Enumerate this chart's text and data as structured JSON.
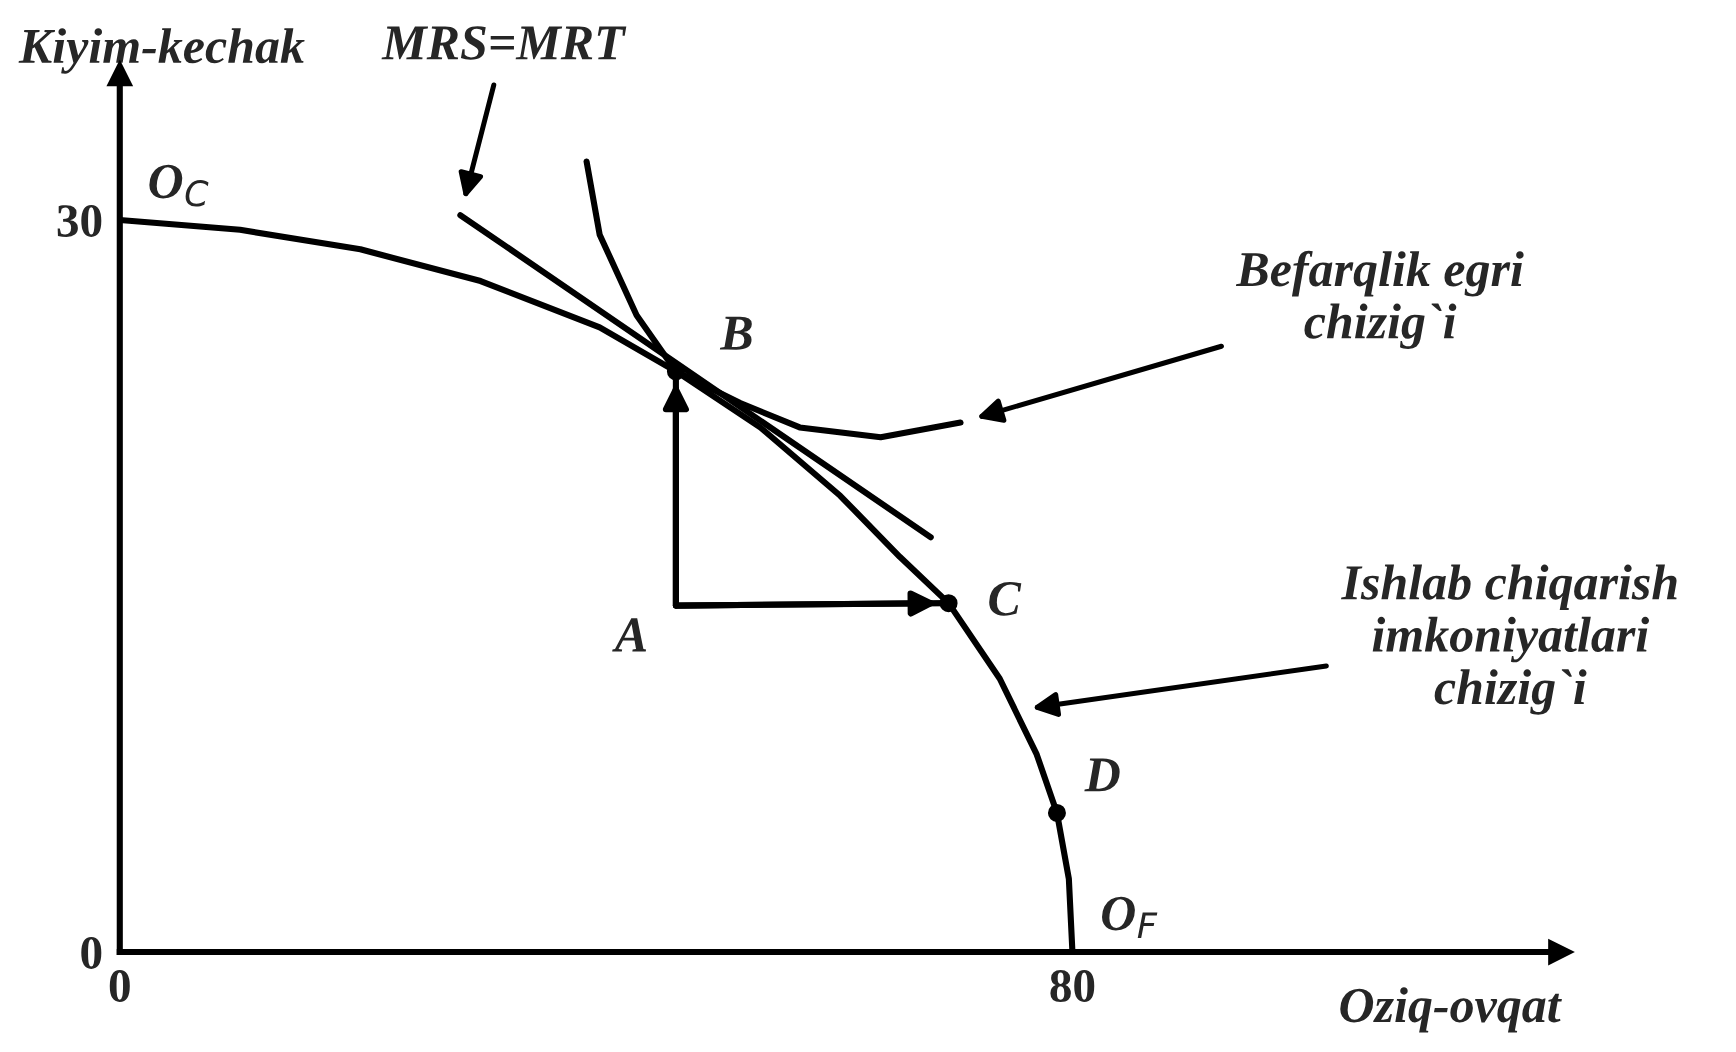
{
  "chart_data": {
    "type": "line",
    "xlabel": "Oziq-ovqat",
    "ylabel": "Kiyim-kechak",
    "xlim": [
      0,
      121
    ],
    "ylim": [
      0,
      36
    ],
    "xticks": [
      0,
      80
    ],
    "yticks": [
      0,
      30
    ],
    "grid": false,
    "legend": false,
    "line_style": "solid",
    "series": [
      {
        "color": "#000000",
        "x": [
          0,
          10.1,
          20.2,
          30.3,
          40.3,
          46.7,
          53.8,
          60.5,
          65.5,
          69.6,
          73.9,
          75.2,
          77.0,
          78.7,
          79.7,
          80
        ],
        "values": [
          30,
          29.6,
          28.8,
          27.5,
          25.6,
          23.8,
          21.5,
          18.7,
          16.2,
          14.3,
          11.2,
          9.9,
          8.1,
          5.7,
          3.0,
          0
        ]
      },
      {
        "color": "#000000",
        "x": [
          28.6,
          68.1
        ],
        "values": [
          30.2,
          17.0
        ]
      },
      {
        "color": "#000000",
        "x": [
          39.2,
          40.3,
          43.4,
          46.7,
          52.1,
          57.1,
          63.9,
          70.6
        ],
        "values": [
          32.4,
          29.4,
          26.1,
          23.8,
          22.5,
          21.5,
          21.1,
          21.7
        ]
      },
      {
        "type": "scatter",
        "marker": "circle",
        "color": "#000000",
        "x": [
          46.7,
          69.6,
          78.7
        ],
        "values": [
          23.8,
          14.3,
          5.7
        ]
      },
      {
        "color": "#000000",
        "x": [
          46.7,
          46.7,
          69.6
        ],
        "values": [
          23.8,
          14.2,
          14.3
        ]
      }
    ],
    "annotations": [
      {
        "text": "A",
        "x": 46.7,
        "y": 14.2
      },
      {
        "text": "B",
        "x": 46.7,
        "y": 23.8
      },
      {
        "text": "C",
        "x": 69.6,
        "y": 14.3
      },
      {
        "text": "D",
        "x": 78.7,
        "y": 5.7
      },
      {
        "text": "O$_{C}$",
        "x": 0,
        "y": 30
      },
      {
        "text": "O$_{F}$",
        "x": 80,
        "y": 0
      },
      "MRS=MRT",
      "Befarqlik egri\nchizig`i",
      "Ishlab chiqarish\nimkoniyatlari\nchizig`i"
    ]
  }
}
